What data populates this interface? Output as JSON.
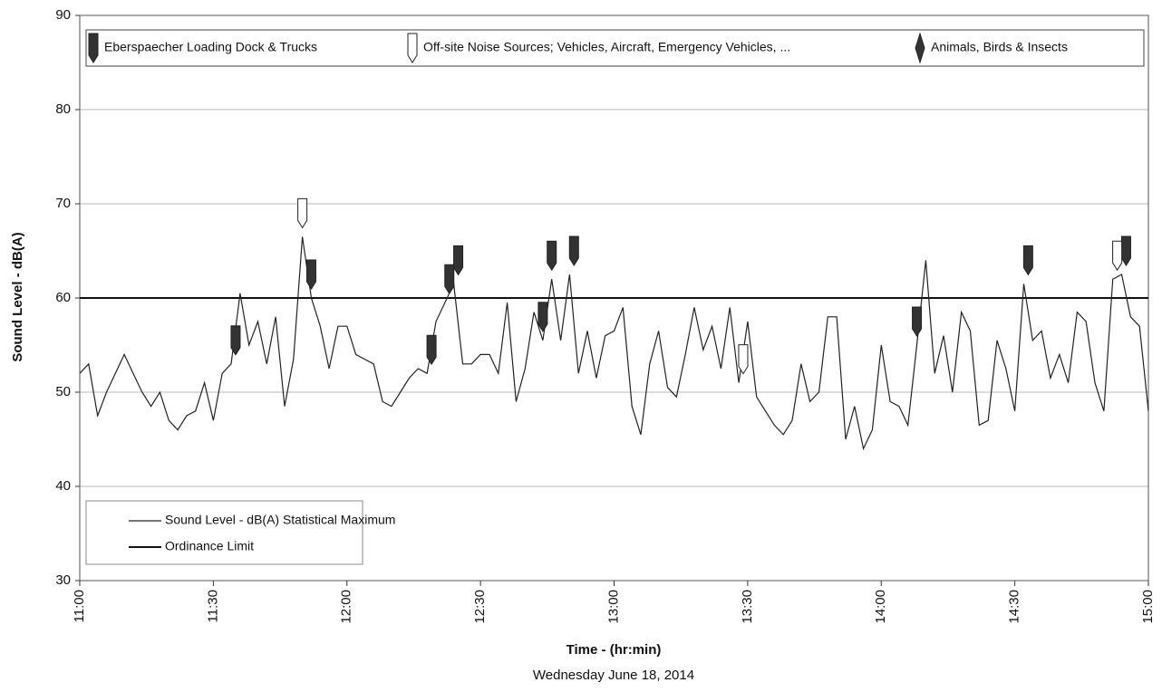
{
  "chart_data": {
    "type": "line",
    "x_label": "Time - (hr:min)",
    "subtitle": "Wednesday June 18, 2014",
    "y_label": "Sound Level - dB(A)",
    "xlim": [
      "11:00",
      "15:00"
    ],
    "xticks": [
      "11:00",
      "11:30",
      "12:00",
      "12:30",
      "13:00",
      "13:30",
      "14:00",
      "14:30",
      "15:00"
    ],
    "ylim": [
      30,
      90
    ],
    "yticks": [
      30,
      40,
      50,
      60,
      70,
      80,
      90
    ],
    "grid": true,
    "x": [
      "11:00",
      "11:02",
      "11:04",
      "11:06",
      "11:08",
      "11:10",
      "11:12",
      "11:14",
      "11:16",
      "11:18",
      "11:20",
      "11:22",
      "11:24",
      "11:26",
      "11:28",
      "11:30",
      "11:32",
      "11:34",
      "11:36",
      "11:38",
      "11:40",
      "11:42",
      "11:44",
      "11:46",
      "11:48",
      "11:50",
      "11:52",
      "11:54",
      "11:56",
      "11:58",
      "12:00",
      "12:02",
      "12:04",
      "12:06",
      "12:08",
      "12:10",
      "12:12",
      "12:14",
      "12:16",
      "12:18",
      "12:20",
      "12:22",
      "12:24",
      "12:26",
      "12:28",
      "12:30",
      "12:32",
      "12:34",
      "12:36",
      "12:38",
      "12:40",
      "12:42",
      "12:44",
      "12:46",
      "12:48",
      "12:50",
      "12:52",
      "12:54",
      "12:56",
      "12:58",
      "13:00",
      "13:02",
      "13:04",
      "13:06",
      "13:08",
      "13:10",
      "13:12",
      "13:14",
      "13:16",
      "13:18",
      "13:20",
      "13:22",
      "13:24",
      "13:26",
      "13:28",
      "13:30",
      "13:32",
      "13:34",
      "13:36",
      "13:38",
      "13:40",
      "13:42",
      "13:44",
      "13:46",
      "13:48",
      "13:50",
      "13:52",
      "13:54",
      "13:56",
      "13:58",
      "14:00",
      "14:02",
      "14:04",
      "14:06",
      "14:08",
      "14:10",
      "14:12",
      "14:14",
      "14:16",
      "14:18",
      "14:20",
      "14:22",
      "14:24",
      "14:26",
      "14:28",
      "14:30",
      "14:32",
      "14:34",
      "14:36",
      "14:38",
      "14:40",
      "14:42",
      "14:44",
      "14:46",
      "14:48",
      "14:50",
      "14:52",
      "14:54",
      "14:56",
      "14:58",
      "15:00"
    ],
    "series": [
      {
        "name": "Sound Level - dB(A) Statistical Maximum",
        "color": "#222222",
        "values": [
          52,
          53,
          47.5,
          50,
          52,
          54,
          52,
          50,
          48.5,
          50,
          47,
          46,
          47.5,
          48,
          51,
          47,
          52,
          53,
          60.5,
          55,
          57.5,
          53,
          58,
          48.5,
          53.5,
          66.5,
          60,
          57,
          52.5,
          57,
          57,
          54,
          53.5,
          53,
          49,
          48.5,
          50,
          51.5,
          52.5,
          52,
          57.5,
          59.5,
          61.5,
          53,
          53,
          54,
          54,
          52,
          59.5,
          49,
          52.5,
          58.5,
          55.5,
          62,
          55.5,
          62.5,
          52,
          56.5,
          51.5,
          56,
          56.5,
          59,
          48.5,
          45.5,
          53,
          56.5,
          50.5,
          49.5,
          54,
          59,
          54.5,
          57,
          52.5,
          59,
          51,
          57.5,
          49.5,
          48,
          46.5,
          45.5,
          47,
          53,
          49,
          50,
          58,
          58,
          45,
          48.5,
          44,
          46,
          55,
          49,
          48.5,
          46.5,
          55,
          64,
          52,
          56,
          50,
          58.5,
          56.5,
          46.5,
          47,
          55.5,
          52.5,
          48,
          61.5,
          55.5,
          56.5,
          51.5,
          54,
          51,
          58.5,
          57.5,
          51,
          48,
          62,
          62.5,
          58,
          57,
          48
        ]
      }
    ],
    "reference_lines": [
      {
        "name": "Ordinance Limit",
        "value": 60,
        "color": "#111111"
      }
    ],
    "event_series": [
      {
        "name": "Eberspaecher Loading Dock & Trucks",
        "color": "#333333",
        "x": [
          "11:35",
          "11:52",
          "12:19",
          "12:23",
          "12:25",
          "12:44",
          "12:46",
          "12:51",
          "14:08",
          "14:33",
          "14:55"
        ]
      },
      {
        "name": "Off-site Noise Sources; Vehicles, Aircraft, Emergency Vehicles, ...",
        "color": "#ffffff",
        "x": [
          "11:50",
          "13:29",
          "14:53"
        ]
      },
      {
        "name": "Animals, Birds & Insects",
        "color": "#333333",
        "x": []
      }
    ]
  }
}
